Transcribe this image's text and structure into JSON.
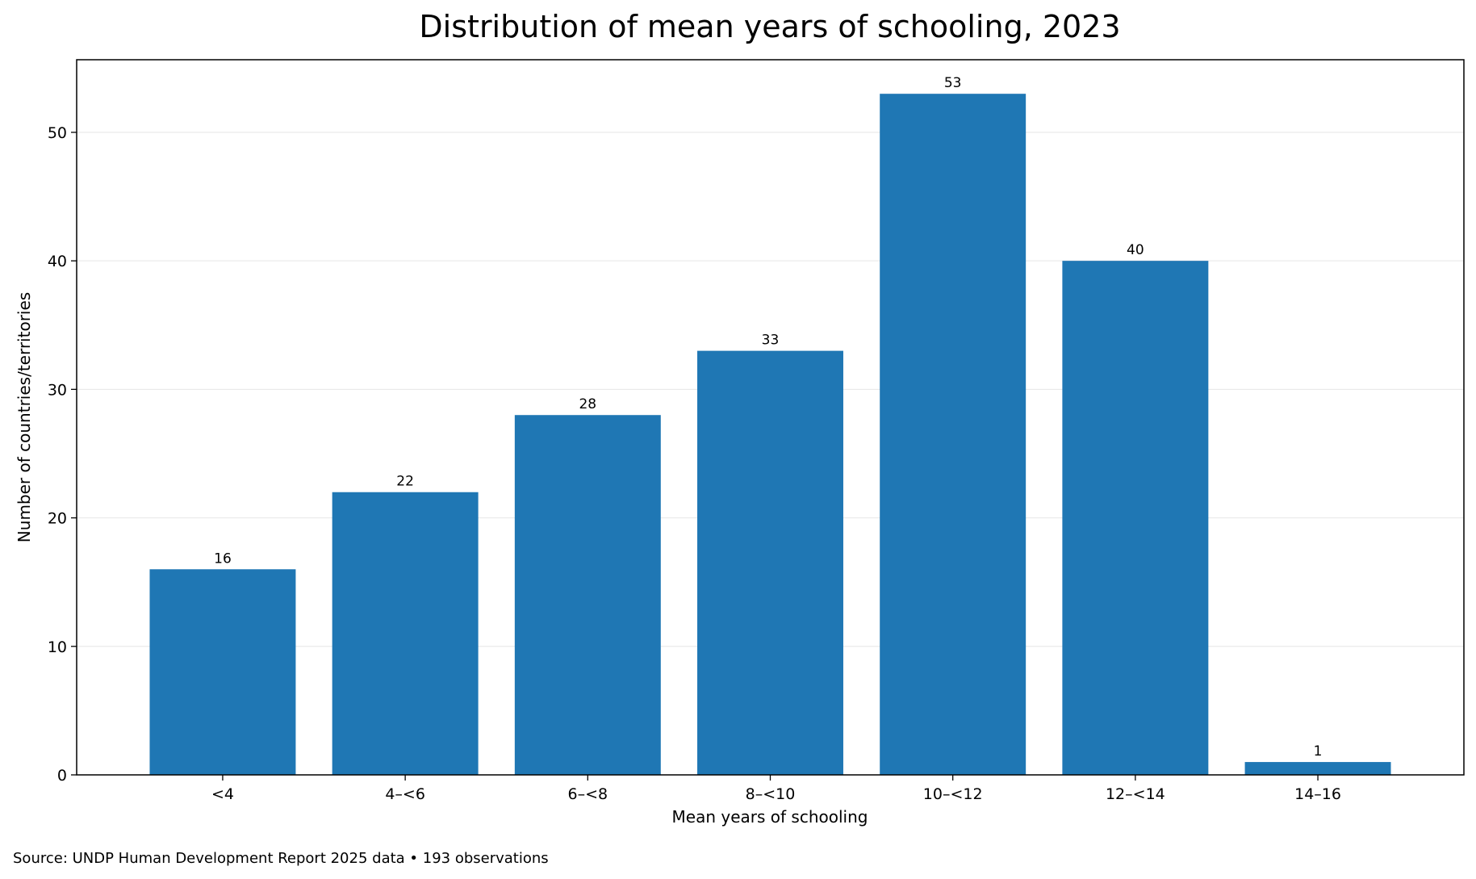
{
  "chart_data": {
    "type": "bar",
    "title": "Distribution of mean years of schooling, 2023",
    "xlabel": "Mean years of schooling",
    "ylabel": "Number of countries/territories",
    "categories": [
      "<4",
      "4–<6",
      "6–<8",
      "8–<10",
      "10–<12",
      "12–<14",
      "14–16"
    ],
    "values": [
      16,
      22,
      28,
      33,
      53,
      40,
      1
    ],
    "data_labels": [
      "16",
      "22",
      "28",
      "33",
      "53",
      "40",
      "1"
    ],
    "ylim": [
      0,
      55.65
    ],
    "yticks": [
      0,
      10,
      20,
      30,
      40,
      50
    ],
    "grid": "y",
    "legend": "none",
    "bar_color": "#1f77b4",
    "grid_color": "#e6e6e6"
  },
  "footer": {
    "source": "Source: UNDP Human Development Report 2025 data • 193 observations"
  }
}
